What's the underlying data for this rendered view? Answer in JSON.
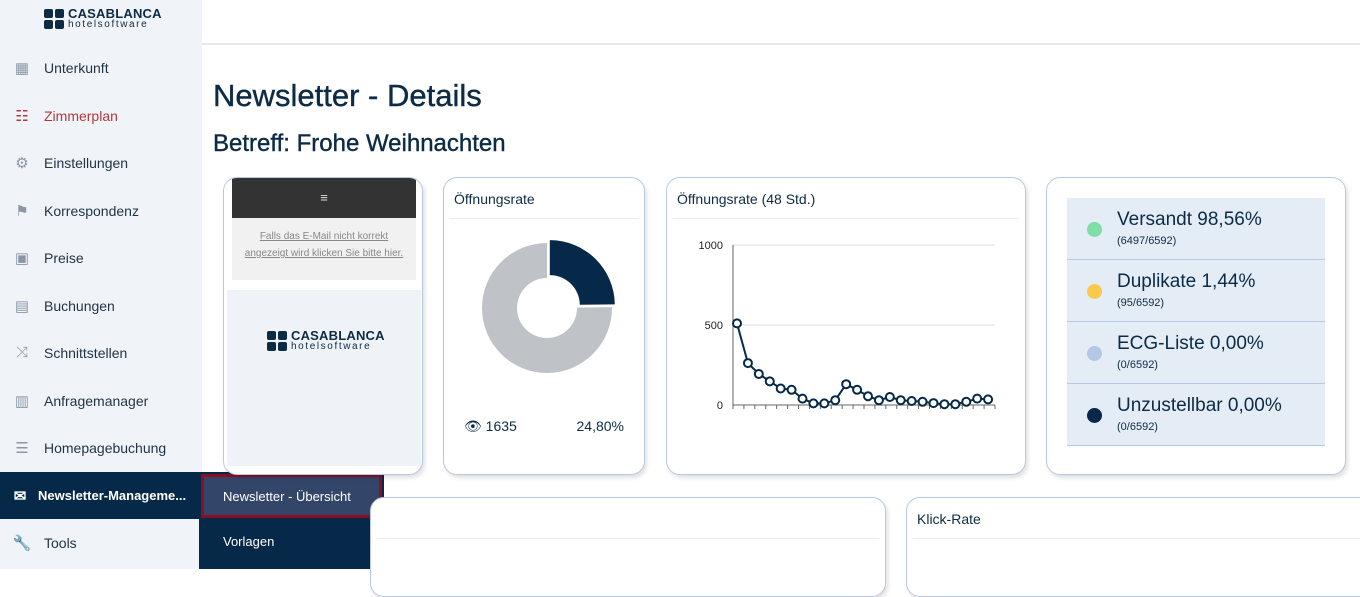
{
  "logo": {
    "line1": "CASABLANCA",
    "line2": "hotelsoftware"
  },
  "sidebar": {
    "items": [
      {
        "label": "Unterkunft",
        "icon": "building-icon"
      },
      {
        "label": "Zimmerplan",
        "icon": "room-plan-icon"
      },
      {
        "label": "Einstellungen",
        "icon": "gears-icon"
      },
      {
        "label": "Korrespondenz",
        "icon": "signpost-icon"
      },
      {
        "label": "Preise",
        "icon": "money-icon"
      },
      {
        "label": "Buchungen",
        "icon": "suitcase-icon"
      },
      {
        "label": "Schnittstellen",
        "icon": "shuffle-icon"
      },
      {
        "label": "Anfragemanager",
        "icon": "calculator-icon"
      },
      {
        "label": "Homepagebuchung",
        "icon": "list-icon"
      },
      {
        "label": "Newsletter-Manageme...",
        "icon": "envelope-icon"
      },
      {
        "label": "Tools",
        "icon": "wrench-icon"
      }
    ],
    "submenu": [
      "Newsletter - Übersicht",
      "Vorlagen"
    ]
  },
  "page": {
    "title": "Newsletter - Details",
    "subject": "Betreff: Frohe Weihnachten"
  },
  "preview": {
    "menu": "≡",
    "link": "Falls das E-Mail nicht korrekt angezeigt wird klicken Sie bitte hier."
  },
  "open_rate": {
    "title": "Öffnungsrate",
    "views": "1635",
    "percent": "24,80%"
  },
  "colors": {
    "dark": "#06294a",
    "gray": "#bfc3c8",
    "green": "#7ddfa5",
    "yellow": "#fbc94c",
    "lightblue": "#b3c8e6"
  },
  "chart_data": [
    {
      "type": "pie",
      "title": "Öffnungsrate",
      "values": [
        24.8,
        75.2
      ]
    },
    {
      "type": "line",
      "title": "Öffnungsrate (48 Std.)",
      "ylim": [
        0,
        1000
      ],
      "yticks": [
        "0",
        "500",
        "1000"
      ],
      "values": [
        510,
        262,
        194,
        148,
        103,
        95,
        40,
        10,
        10,
        30,
        130,
        95,
        55,
        30,
        50,
        30,
        25,
        20,
        12,
        5,
        5,
        20,
        40,
        35
      ]
    }
  ],
  "stats": [
    {
      "label": "Versandt 98,56%",
      "sub": "(6497/6592)",
      "color": "#7ddfa5"
    },
    {
      "label": "Duplikate 1,44%",
      "sub": "(95/6592)",
      "color": "#fbc94c"
    },
    {
      "label": "ECG-Liste 0,00%",
      "sub": "(0/6592)",
      "color": "#b3c8e6"
    },
    {
      "label": "Unzustellbar 0,00%",
      "sub": "(0/6592)",
      "color": "#06294a"
    }
  ],
  "bottom": {
    "click_rate": "Klick-Rate"
  }
}
